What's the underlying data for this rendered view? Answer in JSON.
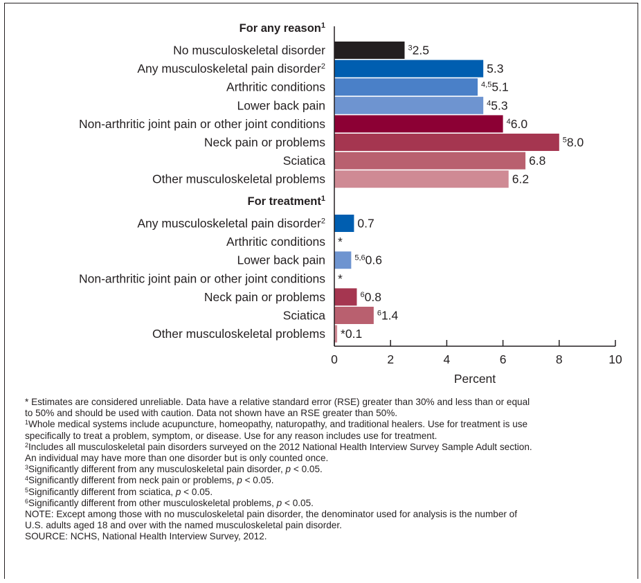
{
  "chart_data": {
    "type": "bar",
    "orientation": "horizontal",
    "xlabel": "Percent",
    "xlim": [
      0,
      10
    ],
    "xticks": [
      "0",
      "2",
      "4",
      "6",
      "8",
      "10"
    ],
    "groups": [
      {
        "title": "For any reason",
        "title_sup": "1",
        "bars": [
          {
            "label": "No musculoskeletal disorder",
            "label_sup": "",
            "value": 2.5,
            "value_text": "2.5",
            "value_sup": "3",
            "color": "#231f20"
          },
          {
            "label": "Any musculoskeletal pain disorder",
            "label_sup": "2",
            "value": 5.3,
            "value_text": "5.3",
            "value_sup": "",
            "color": "#005eb0"
          },
          {
            "label": "Arthritic conditions",
            "label_sup": "",
            "value": 5.1,
            "value_text": "5.1",
            "value_sup": "4,5",
            "color": "#4a80c8"
          },
          {
            "label": "Lower back pain",
            "label_sup": "",
            "value": 5.3,
            "value_text": "5.3",
            "value_sup": "4",
            "color": "#6e94d0"
          },
          {
            "label": "Non-arthritic joint pain or other joint conditions",
            "label_sup": "",
            "value": 6.0,
            "value_text": "6.0",
            "value_sup": "4",
            "color": "#8c0034"
          },
          {
            "label": "Neck pain or problems",
            "label_sup": "",
            "value": 8.0,
            "value_text": "8.0",
            "value_sup": "5",
            "color": "#a53650"
          },
          {
            "label": "Sciatica",
            "label_sup": "",
            "value": 6.8,
            "value_text": "6.8",
            "value_sup": "",
            "color": "#b9606f"
          },
          {
            "label": "Other musculoskeletal problems",
            "label_sup": "",
            "value": 6.2,
            "value_text": "6.2",
            "value_sup": "",
            "color": "#cf8a94"
          }
        ]
      },
      {
        "title": "For treatment",
        "title_sup": "1",
        "bars": [
          {
            "label": "Any musculoskeletal pain disorder",
            "label_sup": "2",
            "value": 0.7,
            "value_text": "0.7",
            "value_sup": "",
            "color": "#005eb0"
          },
          {
            "label": "Arthritic conditions",
            "label_sup": "",
            "value": null,
            "value_text": "*",
            "value_sup": "",
            "color": "#4a80c8"
          },
          {
            "label": "Lower back pain",
            "label_sup": "",
            "value": 0.6,
            "value_text": "0.6",
            "value_sup": "5,6",
            "color": "#6e94d0"
          },
          {
            "label": "Non-arthritic joint pain or other joint conditions",
            "label_sup": "",
            "value": null,
            "value_text": "*",
            "value_sup": "",
            "color": "#8c0034"
          },
          {
            "label": "Neck pain or problems",
            "label_sup": "",
            "value": 0.8,
            "value_text": "0.8",
            "value_sup": "6",
            "color": "#a53650"
          },
          {
            "label": "Sciatica",
            "label_sup": "",
            "value": 1.4,
            "value_text": "1.4",
            "value_sup": "6",
            "color": "#b9606f"
          },
          {
            "label": "Other musculoskeletal problems",
            "label_sup": "",
            "value": 0.1,
            "value_text": "*0.1",
            "value_sup": "",
            "color": "#cf8a94"
          }
        ]
      }
    ]
  },
  "footnotes": [
    {
      "sup": "",
      "text": "* Estimates are considered unreliable. Data have a relative standard error (RSE) greater than 30% and less than or equal"
    },
    {
      "sup": "",
      "text": "to 50% and should be used with caution. Data not shown have an RSE greater than 50%."
    },
    {
      "sup": "1",
      "text": "Whole medical systems include acupuncture, homeopathy, naturopathy, and traditional healers. Use for treatment is use"
    },
    {
      "sup": "",
      "text": "specifically to treat a problem, symptom, or disease. Use for any reason includes use for treatment."
    },
    {
      "sup": "2",
      "text": "Includes all musculoskeletal pain disorders surveyed on the 2012 National Health Interview Survey Sample Adult section."
    },
    {
      "sup": "",
      "text": "An individual may have more than one disorder but is only counted once."
    },
    {
      "sup": "3",
      "text": "Significantly different from any musculoskeletal pain disorder, p < 0.05."
    },
    {
      "sup": "4",
      "text": "Significantly different from neck pain or problems, p < 0.05."
    },
    {
      "sup": "5",
      "text": "Significantly different from sciatica, p < 0.05."
    },
    {
      "sup": "6",
      "text": "Significantly different from other musculoskeletal problems, p < 0.05."
    },
    {
      "sup": "",
      "text": "NOTE: Except among those with no musculoskeletal pain disorder, the denominator used for analysis is the number of"
    },
    {
      "sup": "",
      "text": "U.S. adults aged 18 and over with the named musculoskeletal pain disorder."
    },
    {
      "sup": "",
      "text": "SOURCE: NCHS, National Health Interview Survey, 2012."
    }
  ]
}
